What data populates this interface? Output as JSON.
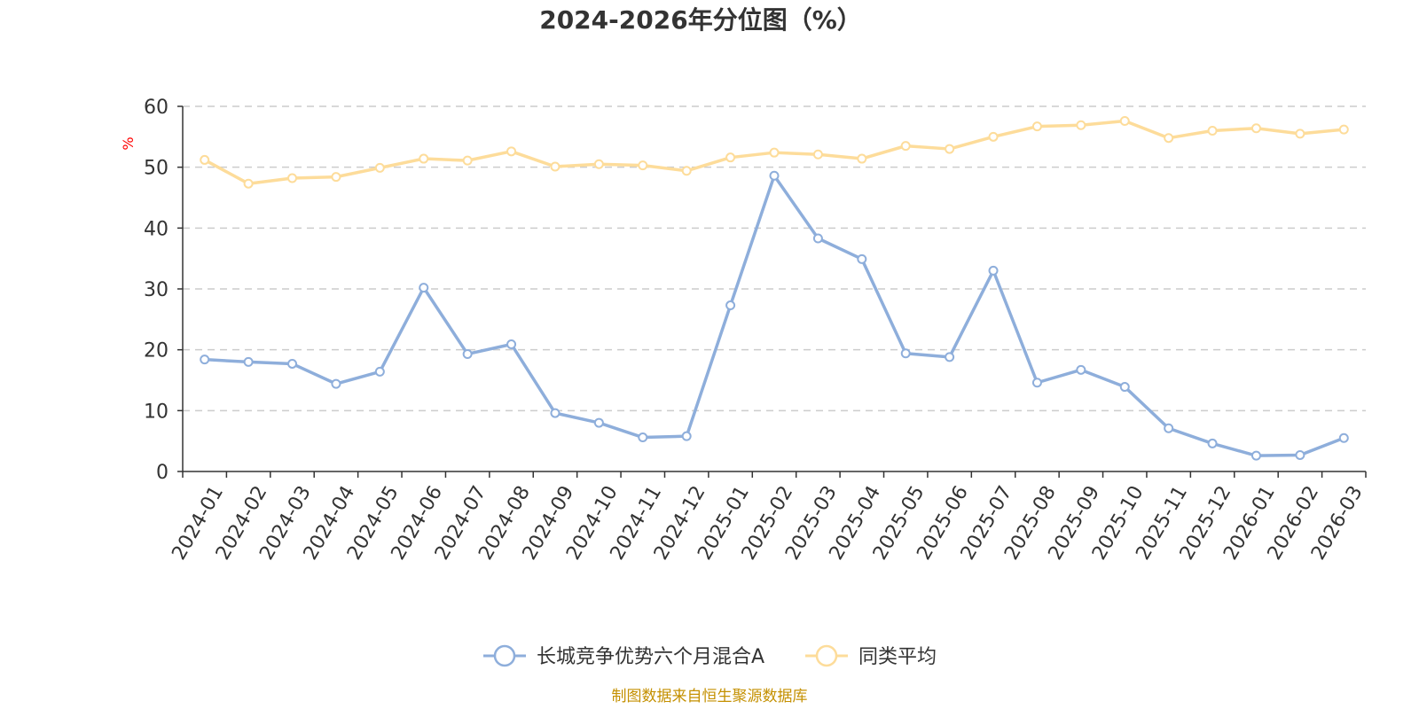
{
  "chart_data": {
    "type": "line",
    "title": "2024-2026年分位图（%）",
    "ylabel": "%",
    "ylim": [
      0,
      60
    ],
    "yticks": [
      0,
      10,
      20,
      30,
      40,
      50,
      60
    ],
    "grid": true,
    "legend_position": "bottom",
    "categories": [
      "2024-01",
      "2024-02",
      "2024-03",
      "2024-04",
      "2024-05",
      "2024-06",
      "2024-07",
      "2024-08",
      "2024-09",
      "2024-10",
      "2024-11",
      "2024-12",
      "2025-01",
      "2025-02",
      "2025-03",
      "2025-04",
      "2025-05",
      "2025-06",
      "2025-07",
      "2025-08",
      "2025-09",
      "2025-10",
      "2025-11",
      "2025-12",
      "2026-01",
      "2026-02",
      "2026-03"
    ],
    "series": [
      {
        "name": "长城竞争优势六个月混合A",
        "color": "#8eaedb",
        "values": [
          18.4,
          18.0,
          17.7,
          14.4,
          16.4,
          30.2,
          19.3,
          20.9,
          9.6,
          8.0,
          5.6,
          5.8,
          27.3,
          48.6,
          38.3,
          34.9,
          19.4,
          18.8,
          33.0,
          14.6,
          16.7,
          13.9,
          7.1,
          4.6,
          2.6,
          2.7,
          5.5
        ]
      },
      {
        "name": "同类平均",
        "color": "#fddc9a",
        "values": [
          51.2,
          47.3,
          48.2,
          48.4,
          49.9,
          51.4,
          51.1,
          52.6,
          50.1,
          50.5,
          50.3,
          49.4,
          51.6,
          52.4,
          52.1,
          51.4,
          53.5,
          53.0,
          55.0,
          56.7,
          56.9,
          57.6,
          54.8,
          56.0,
          56.4,
          55.5,
          56.2
        ]
      }
    ]
  },
  "source_text": "制图数据来自恒生聚源数据库",
  "colors": {
    "axis": "#333333",
    "grid": "#cccccc",
    "ylabel": "#ff0000",
    "source": "#c49000"
  }
}
